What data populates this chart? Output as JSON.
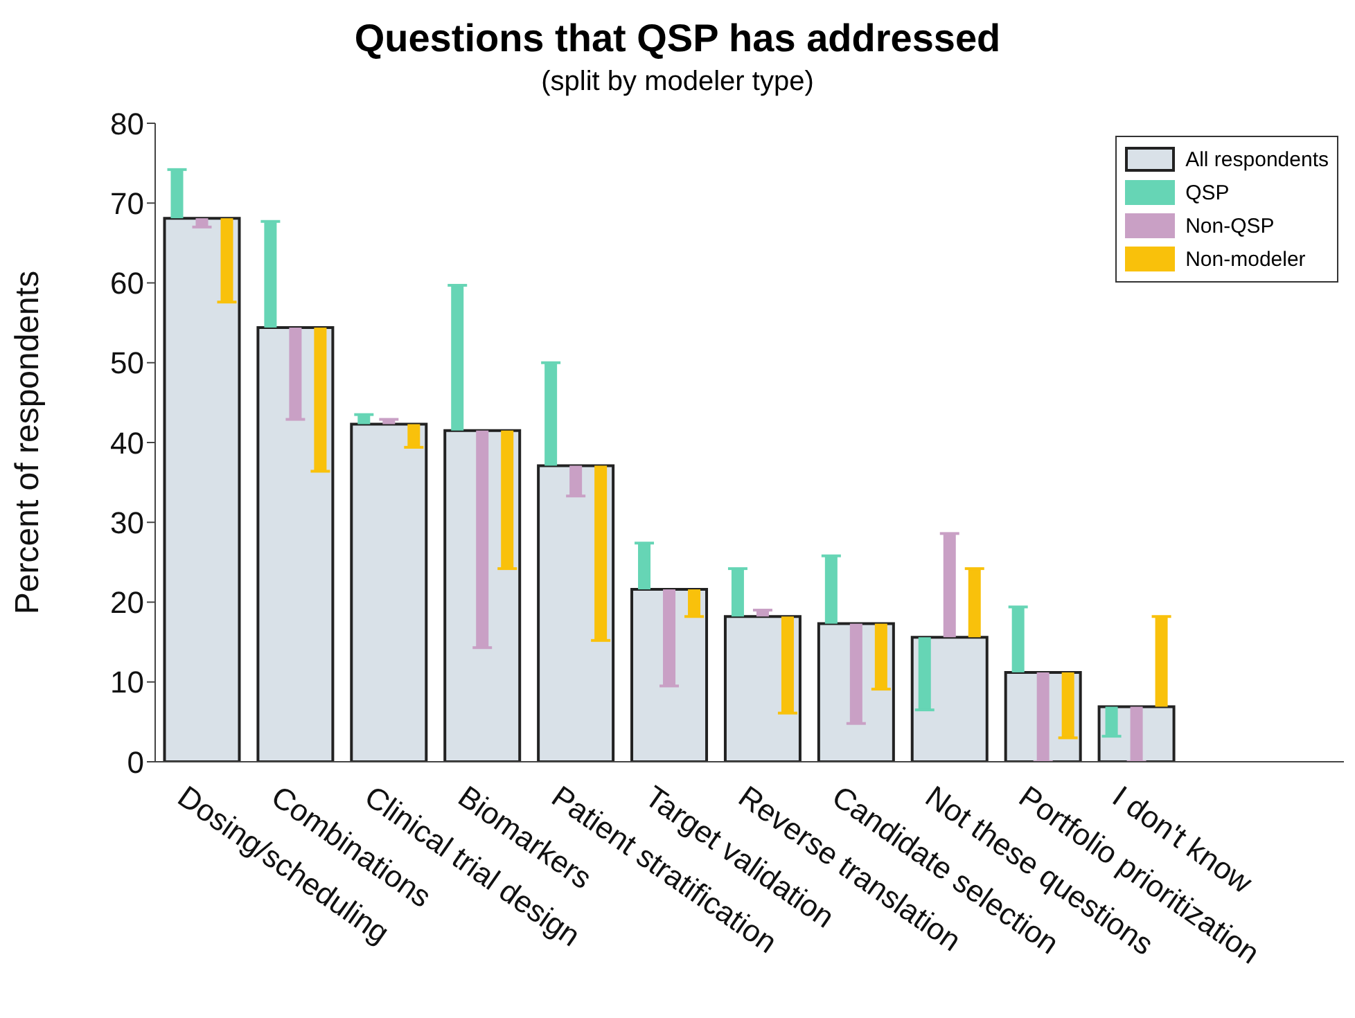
{
  "chart_data": {
    "type": "bar",
    "title": "Questions that QSP has addressed",
    "subtitle": "(split by modeler type)",
    "ylabel": "Percent of respondents",
    "categories": [
      "Dosing/scheduling",
      "Combinations",
      "Clinical trial design",
      "Biomarkers",
      "Patient stratification",
      "Target validation",
      "Reverse translation",
      "Candidate selection",
      "Not these questions",
      "Portfolio prioritization",
      "I don't know"
    ],
    "ylim": [
      0,
      80
    ],
    "yticks": [
      0,
      10,
      20,
      30,
      40,
      50,
      60,
      70,
      80
    ],
    "grid": false,
    "legend": "top right",
    "series": [
      {
        "name": "All respondents",
        "type": "bar",
        "color": "#d9e1e8",
        "values": [
          68.1,
          54.4,
          42.3,
          41.5,
          37.1,
          21.6,
          18.2,
          17.3,
          15.6,
          11.2,
          6.9
        ]
      },
      {
        "name": "QSP",
        "type": "bar",
        "color": "#66d5b5",
        "base": [
          68.1,
          54.4,
          42.3,
          41.5,
          37.1,
          21.6,
          18.2,
          17.3,
          15.6,
          11.2,
          6.9
        ],
        "values": [
          6.1,
          13.3,
          1.2,
          18.2,
          12.9,
          5.8,
          6.0,
          8.5,
          -9.1,
          8.2,
          -3.7
        ]
      },
      {
        "name": "Non-QSP",
        "type": "bar",
        "color": "#c9a0c5",
        "base": [
          68.1,
          54.4,
          42.3,
          41.5,
          37.1,
          21.6,
          18.2,
          17.3,
          15.6,
          11.2,
          6.9
        ],
        "values": [
          -1.1,
          -11.5,
          0.6,
          -27.2,
          -3.8,
          -12.1,
          0.8,
          -12.5,
          13.0,
          -11.2,
          -6.9
        ]
      },
      {
        "name": "Non-modeler",
        "type": "bar",
        "color": "#f9c10b",
        "base": [
          68.1,
          54.4,
          42.3,
          41.5,
          37.1,
          21.6,
          18.2,
          17.3,
          15.6,
          11.2,
          6.9
        ],
        "values": [
          -10.5,
          -18.0,
          -2.9,
          -17.3,
          -21.9,
          -3.4,
          -12.1,
          -8.2,
          8.6,
          -8.2,
          11.3
        ]
      }
    ]
  }
}
